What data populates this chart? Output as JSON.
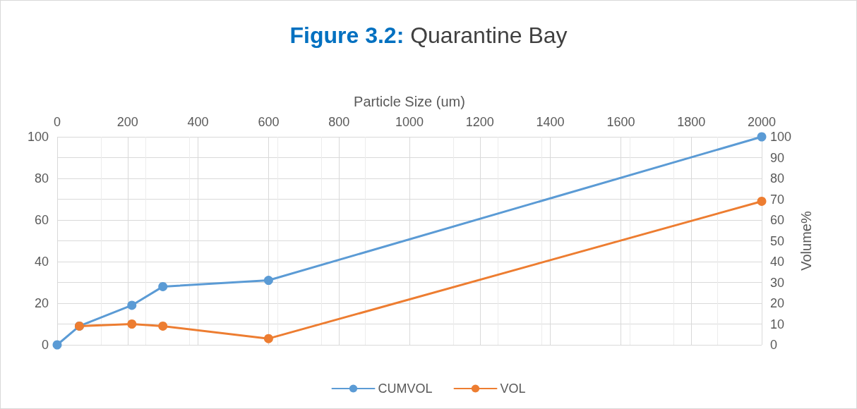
{
  "chart_data": {
    "type": "line",
    "title": "Figure 3.2: Quarantine Bay",
    "xlabel": "Particle Size (um)",
    "y2label": "Volume%",
    "series": [
      {
        "name": "CUMVOL",
        "color": "#5b9bd5",
        "x": [
          0,
          63,
          212,
          300,
          600,
          2000
        ],
        "values": [
          0,
          9,
          19,
          28,
          31,
          100
        ]
      },
      {
        "name": "VOL",
        "color": "#ed7d31",
        "x": [
          63,
          212,
          300,
          600,
          2000
        ],
        "values": [
          9,
          10,
          9,
          3,
          69
        ]
      }
    ],
    "xlim": [
      0,
      2000
    ],
    "xticks": [
      0,
      200,
      400,
      600,
      800,
      1000,
      1200,
      1400,
      1600,
      1800,
      2000
    ],
    "ylim": [
      0,
      100
    ],
    "yticks": [
      0,
      20,
      40,
      60,
      80,
      100
    ],
    "y2lim": [
      0,
      100
    ],
    "y2ticks": [
      0,
      10,
      20,
      30,
      40,
      50,
      60,
      70,
      80,
      90,
      100
    ],
    "grid": true,
    "legend": "bottom",
    "marker": "circle",
    "line_style": "solid"
  }
}
